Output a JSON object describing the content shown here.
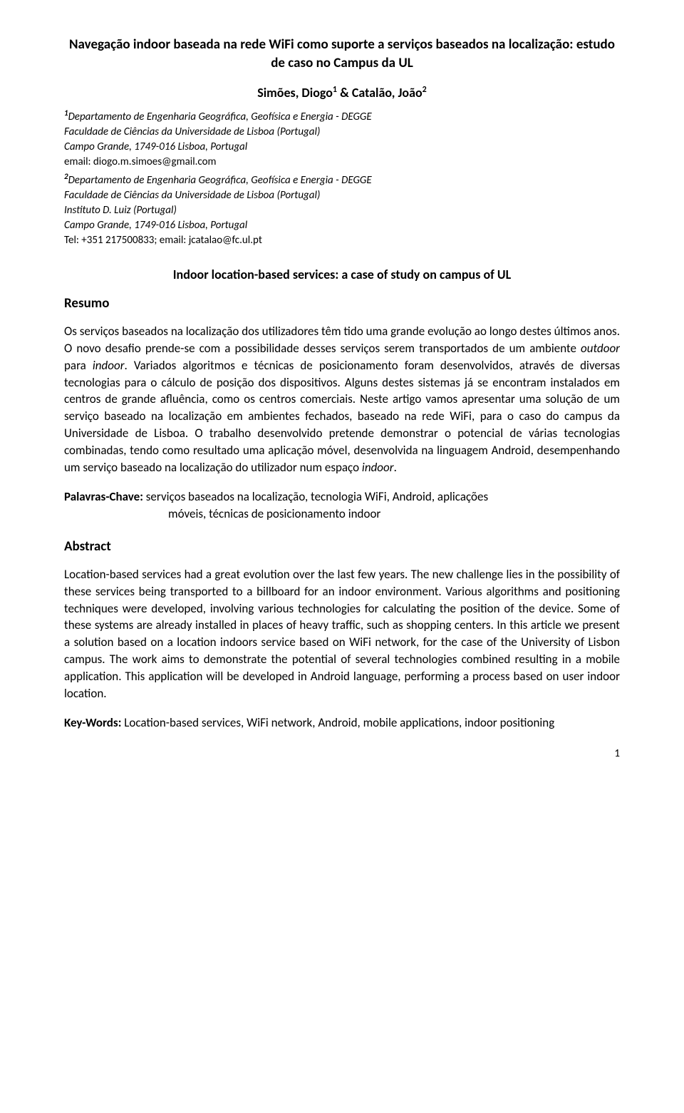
{
  "title": "Navegação indoor baseada na rede WiFi como suporte a serviços baseados na localização: estudo de caso no Campus da UL",
  "authors": {
    "a1_name": "Simões, ",
    "a1_given": "Diogo",
    "a1_sup": "1",
    "amp": " & ",
    "a2_name": "Catalão, ",
    "a2_given": "João",
    "a2_sup": "2"
  },
  "aff1": {
    "sup": "1",
    "line1": "Departamento de Engenharia Geográfica, Geofísica e Energia - DEGGE",
    "line2": "Faculdade de Ciências da Universidade de Lisboa (Portugal)",
    "line3": "Campo Grande, 1749-016 Lisboa, Portugal",
    "contact": "email: diogo.m.simoes@gmail.com"
  },
  "aff2": {
    "sup": "2",
    "line1": "Departamento de Engenharia Geográfica, Geofísica e Energia - DEGGE",
    "line2": "Faculdade de Ciências da Universidade de Lisboa (Portugal)",
    "line3": "Instituto D. Luiz (Portugal)",
    "line4": "Campo Grande, 1749-016 Lisboa, Portugal",
    "contact": "Tel: +351 217500833; email: jcatalao@fc.ul.pt"
  },
  "subtitle": "Indoor location-based services: a case of study on campus of UL",
  "resumo": {
    "heading": "Resumo",
    "p1a": "Os serviços baseados na localização dos utilizadores têm tido uma grande evolução ao longo destes últimos anos. O novo desafio prende-se com a possibilidade desses serviços serem transportados de um ambiente ",
    "p1b_i": "outdoor",
    "p1c": " para ",
    "p1d_i": "indoor",
    "p1e": ". Variados algoritmos e técnicas de posicionamento foram desenvolvidos, através de diversas tecnologias para o cálculo de posição dos dispositivos. Alguns destes sistemas já se encontram instalados em centros de grande afluência, como os centros comerciais. Neste artigo vamos apresentar uma solução de um serviço baseado na localização em ambientes fechados, baseado na rede WiFi, para o caso do campus da Universidade de Lisboa. O trabalho desenvolvido pretende demonstrar o potencial de várias tecnologias combinadas, tendo como resultado uma aplicação móvel, desenvolvida na linguagem Android, desempenhando um serviço baseado na localização do utilizador num espaço ",
    "p1f_i": "indoor",
    "p1g": "."
  },
  "palavras": {
    "label": "Palavras-Chave: ",
    "line1": "serviços baseados na localização, tecnologia WiFi, Android, aplicações",
    "line2": "móveis, técnicas de posicionamento indoor"
  },
  "abstract": {
    "heading": "Abstract",
    "p1": "Location-based services had a great evolution over the last few years. The new challenge lies in the possibility of these services being transported to a billboard for an indoor environment. Various algorithms and positioning techniques were developed, involving various technologies for calculating the position of the device. Some of these systems are already installed in places of heavy traffic, such as shopping centers. In this article we present a solution based on a location indoors service based on WiFi network, for the case of the University of Lisbon campus. The work aims to demonstrate the potential of several technologies combined resulting in a mobile application. This application will be developed in Android language, performing a process based on user indoor location."
  },
  "keywords": {
    "label": "Key-Words: ",
    "text": "Location-based services, WiFi network, Android, mobile applications, indoor positioning"
  },
  "page_number": "1"
}
